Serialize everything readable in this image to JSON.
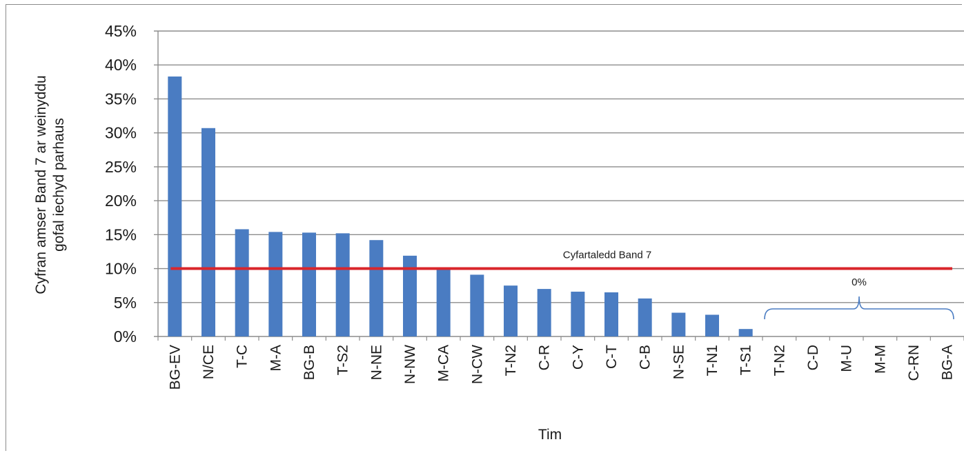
{
  "chart_data": {
    "type": "bar",
    "categories": [
      "BG-EV",
      "N/CE",
      "T-C",
      "M-A",
      "BG-B",
      "T-S2",
      "N-NE",
      "N-NW",
      "M-CA",
      "N-CW",
      "T-N2",
      "C-R",
      "C-Y",
      "C-T",
      "C-B",
      "N-SE",
      "T-N1",
      "T-S1",
      "T-N2",
      "C-D",
      "M-U",
      "M-M",
      "C-RN",
      "BG-A"
    ],
    "values": [
      38.3,
      30.7,
      15.8,
      15.4,
      15.3,
      15.2,
      14.2,
      11.9,
      9.9,
      9.1,
      7.5,
      7.0,
      6.6,
      6.5,
      5.6,
      3.5,
      3.2,
      1.1,
      0,
      0,
      0,
      0,
      0,
      0
    ],
    "xlabel": "Tim",
    "ylabel_line1": "Cyfran amser Band 7 ar weinyddu",
    "ylabel_line2": "gofal iechyd parhaus",
    "ylim": [
      0,
      45
    ],
    "yticks": [
      "0%",
      "5%",
      "10%",
      "15%",
      "20%",
      "25%",
      "30%",
      "35%",
      "40%",
      "45%"
    ],
    "grid": true,
    "reference_line": {
      "label": "Cyfartaledd Band 7",
      "value": 10,
      "color": "#d9262b"
    },
    "zero_group_annotation": {
      "label": "0%",
      "from_index": 18,
      "to_index": 23
    },
    "bar_color": "#4a7cc2"
  }
}
